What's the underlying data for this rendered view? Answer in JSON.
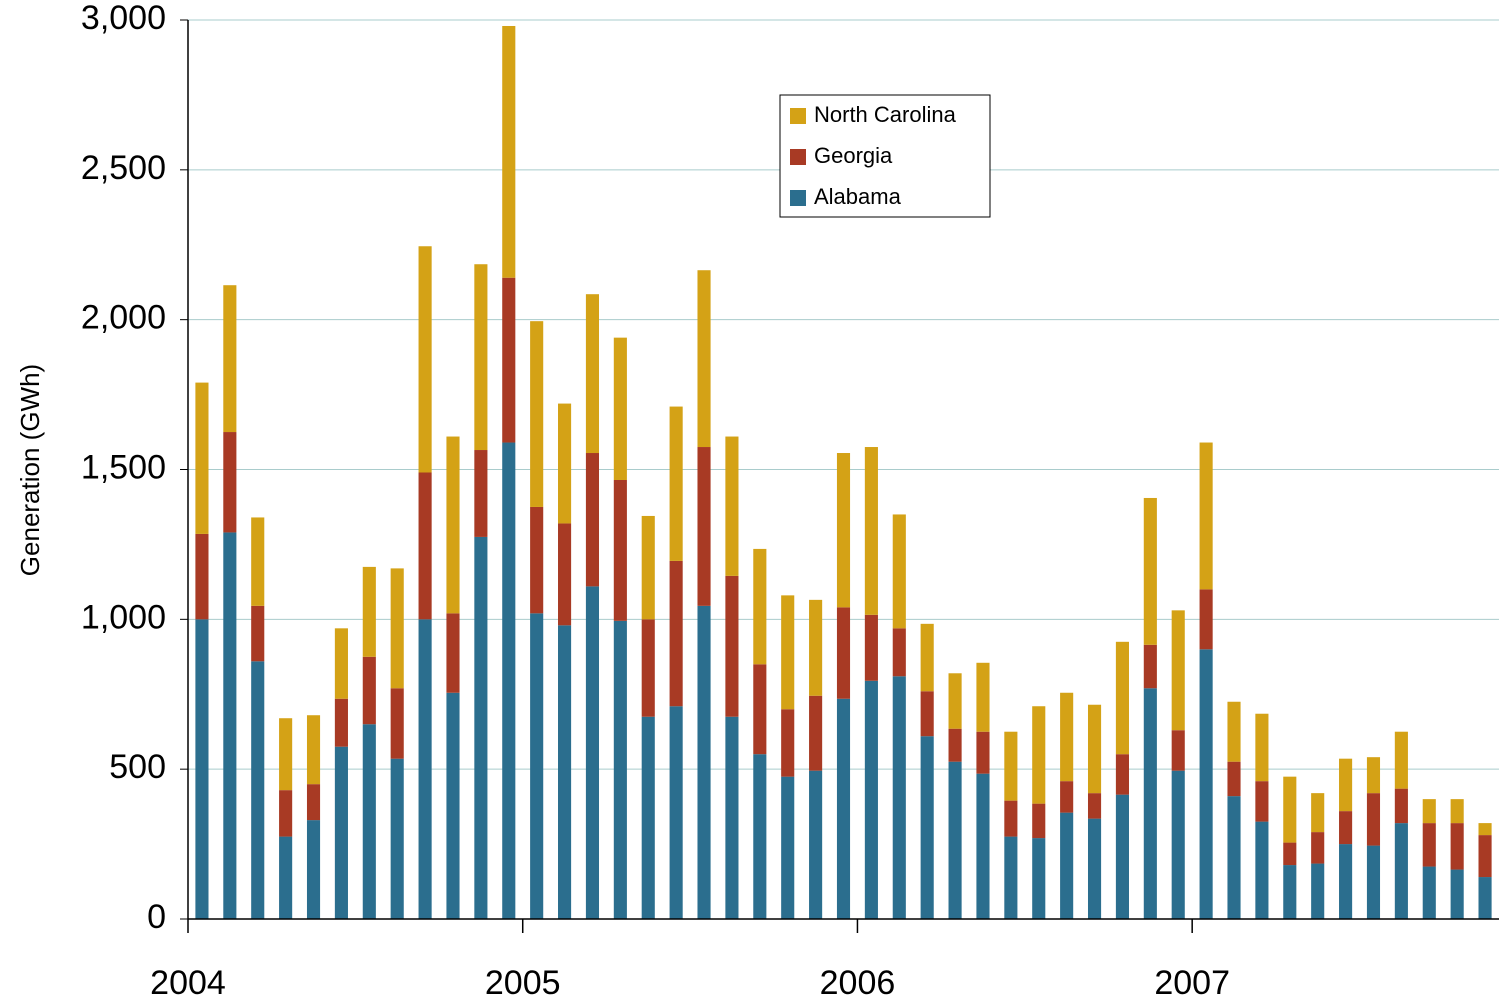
{
  "chart_data": {
    "type": "stacked_bar",
    "ylabel": "Generation (GWh)",
    "categories": [
      "2004",
      null,
      null,
      null,
      null,
      null,
      null,
      null,
      null,
      null,
      null,
      null,
      "2005",
      null,
      null,
      null,
      null,
      null,
      null,
      null,
      null,
      null,
      null,
      null,
      "2006",
      null,
      null,
      null,
      null,
      null,
      null,
      null,
      null,
      null,
      null,
      null,
      "2007",
      null,
      null,
      null,
      null,
      null,
      null,
      null,
      null,
      null,
      null
    ],
    "series": [
      {
        "name": "Alabama",
        "color": "#2b6e8e",
        "values": [
          1000,
          1290,
          860,
          275,
          330,
          575,
          650,
          535,
          1000,
          755,
          1275,
          1590,
          1020,
          980,
          1110,
          995,
          675,
          710,
          1045,
          675,
          550,
          475,
          495,
          735,
          795,
          810,
          610,
          525,
          485,
          275,
          270,
          355,
          335,
          415,
          770,
          495,
          900,
          410,
          325,
          180,
          185,
          250,
          245,
          320,
          175,
          165,
          140
        ]
      },
      {
        "name": "Georgia",
        "color": "#a83a24",
        "values": [
          285,
          335,
          185,
          155,
          120,
          160,
          225,
          235,
          490,
          265,
          290,
          550,
          355,
          340,
          445,
          470,
          325,
          485,
          530,
          470,
          300,
          225,
          250,
          305,
          220,
          160,
          150,
          110,
          140,
          120,
          115,
          105,
          85,
          135,
          145,
          135,
          200,
          115,
          135,
          75,
          105,
          110,
          175,
          115,
          145,
          155,
          140
        ]
      },
      {
        "name": "North Carolina",
        "color": "#d4a216",
        "values": [
          505,
          490,
          295,
          240,
          230,
          235,
          300,
          400,
          755,
          590,
          620,
          840,
          620,
          400,
          530,
          475,
          345,
          515,
          590,
          465,
          385,
          380,
          320,
          515,
          560,
          380,
          225,
          185,
          230,
          230,
          325,
          295,
          295,
          375,
          490,
          400,
          490,
          200,
          225,
          220,
          130,
          175,
          120,
          190,
          80,
          80,
          40
        ]
      }
    ],
    "ylim": [
      0,
      3000
    ],
    "yticks": [
      0,
      500,
      {
        "value": 1000,
        "label": "1,000"
      },
      {
        "value": 1500,
        "label": "1,500"
      },
      {
        "value": 2000,
        "label": "2,000"
      },
      {
        "value": 2500,
        "label": "2,500"
      },
      {
        "value": 3000,
        "label": "3,000"
      }
    ],
    "grid": true,
    "legend": "upper-center"
  }
}
